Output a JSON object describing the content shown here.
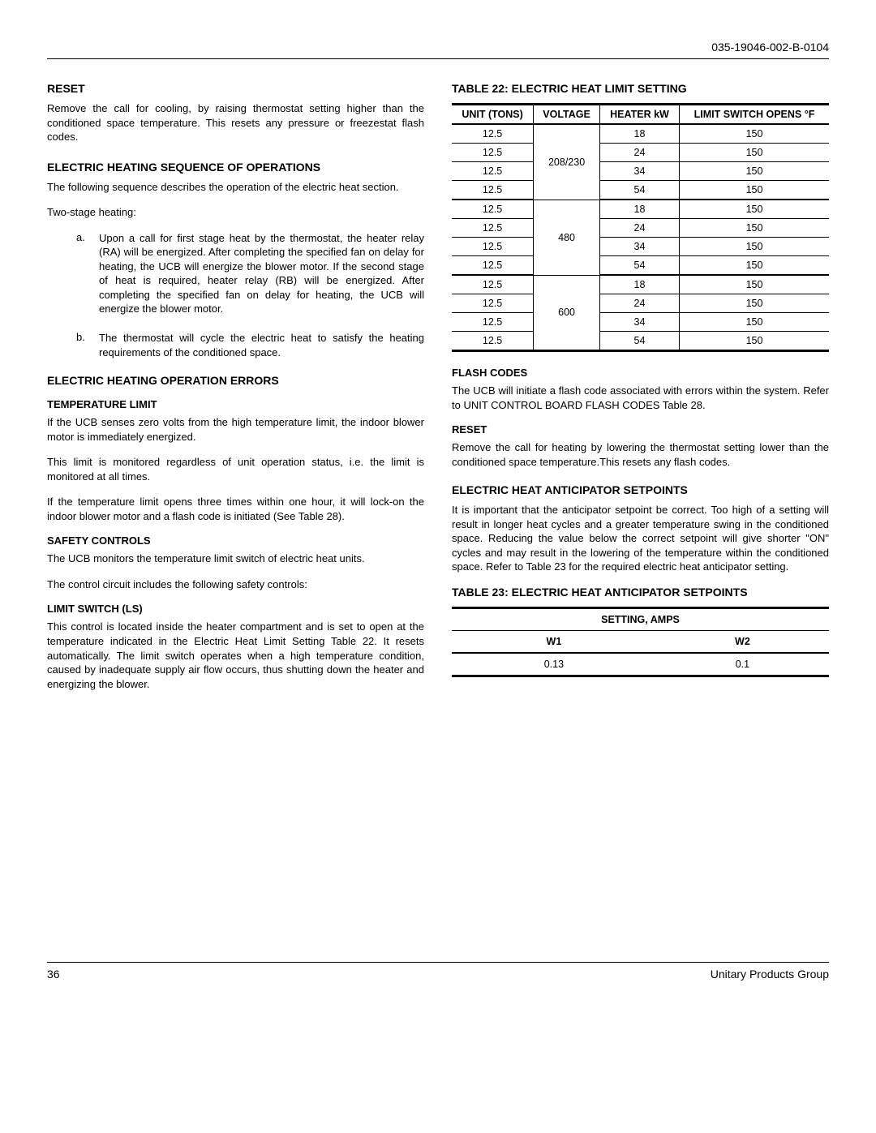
{
  "header": {
    "docnum": "035-19046-002-B-0104"
  },
  "left": {
    "reset_h": "RESET",
    "reset_p": "Remove the call for cooling, by raising thermostat setting higher than the conditioned space temperature. This resets any pressure or freezestat flash codes.",
    "seq_h": "ELECTRIC HEATING SEQUENCE OF OPERATIONS",
    "seq_p": "The following sequence describes the operation of the electric heat section.",
    "two_stage": "Two-stage heating:",
    "item_a": "Upon a call for first stage heat by the thermostat, the heater relay (RA) will be energized. After completing the specified fan on delay for heating, the UCB will energize the blower motor. If the second stage of heat is required, heater relay (RB) will be energized. After completing the specified fan on delay for heating, the UCB will energize the blower motor.",
    "item_b": "The thermostat will cycle the electric heat to satisfy the heating requirements of the conditioned space.",
    "err_h": "ELECTRIC HEATING OPERATION ERRORS",
    "tlimit_h": "TEMPERATURE LIMIT",
    "tlimit_p1": "If the UCB senses zero volts from the high temperature limit, the indoor blower motor is immediately energized.",
    "tlimit_p2": "This limit is monitored regardless of unit operation status, i.e. the limit is monitored at all times.",
    "tlimit_p3": "If the temperature limit opens three times within one hour, it will lock-on the indoor blower motor and a flash code is initiated (See Table 28).",
    "safety_h": "SAFETY CONTROLS",
    "safety_p1": "The UCB monitors the temperature limit switch of electric heat units.",
    "safety_p2": "The control circuit includes the following safety controls:",
    "ls_h": "LIMIT SWITCH (LS)",
    "ls_p": "This control is located inside the heater compartment and is set to open at the temperature indicated in the Electric Heat Limit Setting Table 22. It resets automatically. The limit switch operates when a high temperature condition, caused by inadequate supply air flow occurs, thus shutting down the heater and energizing the blower."
  },
  "right": {
    "t22_cap": "TABLE 22:  ELECTRIC HEAT LIMIT SETTING",
    "t22_cols": {
      "c1": "UNIT (TONS)",
      "c2": "VOLTAGE",
      "c3": "HEATER kW",
      "c4": "LIMIT SWITCH OPENS °F"
    },
    "t22_groups": [
      {
        "voltage": "208/230",
        "rows": [
          {
            "tons": "12.5",
            "kw": "18",
            "limit": "150"
          },
          {
            "tons": "12.5",
            "kw": "24",
            "limit": "150"
          },
          {
            "tons": "12.5",
            "kw": "34",
            "limit": "150"
          },
          {
            "tons": "12.5",
            "kw": "54",
            "limit": "150"
          }
        ]
      },
      {
        "voltage": "480",
        "rows": [
          {
            "tons": "12.5",
            "kw": "18",
            "limit": "150"
          },
          {
            "tons": "12.5",
            "kw": "24",
            "limit": "150"
          },
          {
            "tons": "12.5",
            "kw": "34",
            "limit": "150"
          },
          {
            "tons": "12.5",
            "kw": "54",
            "limit": "150"
          }
        ]
      },
      {
        "voltage": "600",
        "rows": [
          {
            "tons": "12.5",
            "kw": "18",
            "limit": "150"
          },
          {
            "tons": "12.5",
            "kw": "24",
            "limit": "150"
          },
          {
            "tons": "12.5",
            "kw": "34",
            "limit": "150"
          },
          {
            "tons": "12.5",
            "kw": "54",
            "limit": "150"
          }
        ]
      }
    ],
    "flash_h": "FLASH CODES",
    "flash_p": "The UCB will initiate a flash code associated with errors within the system. Refer to UNIT CONTROL BOARD FLASH CODES Table 28.",
    "reset_h": "RESET",
    "reset_p": "Remove the call for heating by lowering the thermostat setting lower than the conditioned space temperature.This resets any flash codes.",
    "ant_h": "ELECTRIC HEAT ANTICIPATOR SETPOINTS",
    "ant_p": "It is important that the anticipator setpoint be correct. Too high of a setting will result in longer heat cycles and a greater temperature swing in the conditioned space. Reducing the value below the correct setpoint will give shorter \"ON\" cycles and may result in the lowering of the temperature within the conditioned space. Refer to Table 23 for the required electric heat anticipator setting.",
    "t23_cap": "TABLE 23:  ELECTRIC HEAT ANTICIPATOR SETPOINTS",
    "t23_hdr": "SETTING, AMPS",
    "t23_c1": "W1",
    "t23_c2": "W2",
    "t23_v1": "0.13",
    "t23_v2": "0.1"
  },
  "footer": {
    "page": "36",
    "group": "Unitary Products Group"
  }
}
